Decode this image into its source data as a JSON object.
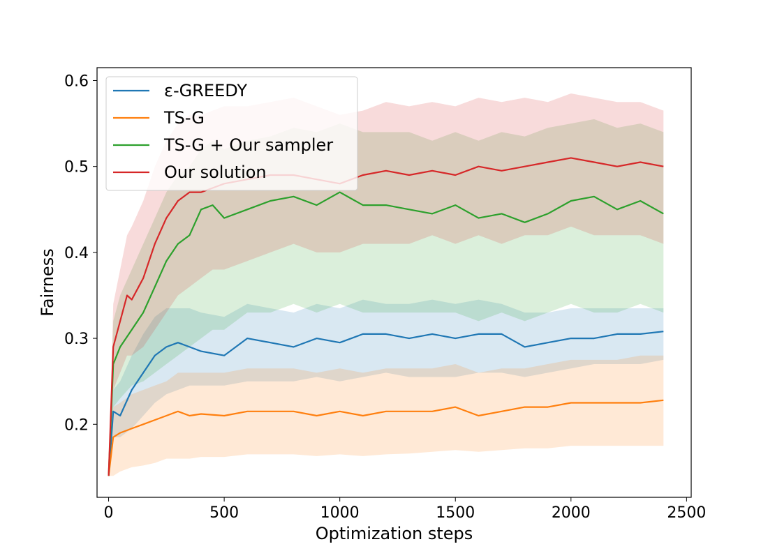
{
  "chart_data": {
    "type": "line",
    "title": "",
    "xlabel": "Optimization steps",
    "ylabel": "Fairness",
    "xlim": [
      -50,
      2520
    ],
    "ylim": [
      0.115,
      0.615
    ],
    "xticks": [
      0,
      500,
      1000,
      1500,
      2000,
      2500
    ],
    "yticks": [
      0.2,
      0.3,
      0.4,
      0.5,
      0.6
    ],
    "grid": false,
    "legend_position": "top-left",
    "series": [
      {
        "name": "ε-GREEDY",
        "color": "#1f77b4",
        "x": [
          0,
          20,
          50,
          100,
          150,
          200,
          250,
          300,
          350,
          400,
          500,
          600,
          700,
          800,
          900,
          1000,
          1100,
          1200,
          1300,
          1400,
          1500,
          1600,
          1700,
          1800,
          1900,
          2000,
          2100,
          2200,
          2300,
          2400
        ],
        "y": [
          0.14,
          0.215,
          0.21,
          0.24,
          0.26,
          0.28,
          0.29,
          0.295,
          0.29,
          0.285,
          0.28,
          0.3,
          0.295,
          0.29,
          0.3,
          0.295,
          0.305,
          0.305,
          0.3,
          0.305,
          0.3,
          0.305,
          0.305,
          0.29,
          0.295,
          0.3,
          0.3,
          0.305,
          0.305,
          0.308
        ],
        "lower": [
          0.14,
          0.185,
          0.185,
          0.195,
          0.21,
          0.225,
          0.235,
          0.24,
          0.245,
          0.245,
          0.245,
          0.25,
          0.25,
          0.25,
          0.255,
          0.25,
          0.255,
          0.26,
          0.255,
          0.255,
          0.255,
          0.26,
          0.26,
          0.255,
          0.26,
          0.265,
          0.27,
          0.27,
          0.27,
          0.275
        ],
        "upper": [
          0.14,
          0.24,
          0.25,
          0.28,
          0.305,
          0.325,
          0.335,
          0.335,
          0.335,
          0.33,
          0.325,
          0.34,
          0.335,
          0.33,
          0.34,
          0.335,
          0.345,
          0.34,
          0.34,
          0.345,
          0.34,
          0.345,
          0.34,
          0.33,
          0.33,
          0.335,
          0.335,
          0.335,
          0.335,
          0.335
        ]
      },
      {
        "name": "TS-G",
        "color": "#ff7f0e",
        "x": [
          0,
          20,
          50,
          100,
          150,
          200,
          250,
          300,
          350,
          400,
          500,
          600,
          700,
          800,
          900,
          1000,
          1100,
          1200,
          1300,
          1400,
          1500,
          1600,
          1700,
          1800,
          1900,
          2000,
          2100,
          2200,
          2300,
          2400
        ],
        "y": [
          0.14,
          0.185,
          0.19,
          0.195,
          0.2,
          0.205,
          0.21,
          0.215,
          0.21,
          0.212,
          0.21,
          0.215,
          0.215,
          0.215,
          0.21,
          0.215,
          0.21,
          0.215,
          0.215,
          0.215,
          0.22,
          0.21,
          0.215,
          0.22,
          0.22,
          0.225,
          0.225,
          0.225,
          0.225,
          0.228
        ],
        "lower": [
          0.14,
          0.14,
          0.145,
          0.15,
          0.152,
          0.155,
          0.16,
          0.16,
          0.16,
          0.162,
          0.162,
          0.165,
          0.165,
          0.165,
          0.163,
          0.165,
          0.163,
          0.165,
          0.166,
          0.168,
          0.17,
          0.168,
          0.17,
          0.172,
          0.172,
          0.175,
          0.175,
          0.175,
          0.175,
          0.175
        ],
        "upper": [
          0.14,
          0.22,
          0.225,
          0.235,
          0.24,
          0.245,
          0.25,
          0.26,
          0.26,
          0.26,
          0.26,
          0.265,
          0.265,
          0.265,
          0.26,
          0.265,
          0.26,
          0.265,
          0.265,
          0.265,
          0.27,
          0.26,
          0.265,
          0.265,
          0.27,
          0.275,
          0.275,
          0.275,
          0.28,
          0.28
        ]
      },
      {
        "name": "TS-G + Our sampler",
        "color": "#2ca02c",
        "x": [
          0,
          20,
          50,
          100,
          150,
          200,
          250,
          300,
          350,
          400,
          450,
          500,
          600,
          700,
          800,
          900,
          1000,
          1100,
          1200,
          1300,
          1400,
          1500,
          1600,
          1700,
          1800,
          1900,
          2000,
          2100,
          2200,
          2300,
          2400
        ],
        "y": [
          0.14,
          0.27,
          0.29,
          0.31,
          0.33,
          0.36,
          0.39,
          0.41,
          0.42,
          0.45,
          0.455,
          0.44,
          0.45,
          0.46,
          0.465,
          0.455,
          0.47,
          0.455,
          0.455,
          0.45,
          0.445,
          0.455,
          0.44,
          0.445,
          0.435,
          0.445,
          0.46,
          0.465,
          0.45,
          0.46,
          0.445
        ],
        "lower": [
          0.14,
          0.22,
          0.23,
          0.245,
          0.25,
          0.26,
          0.27,
          0.28,
          0.29,
          0.3,
          0.31,
          0.31,
          0.33,
          0.33,
          0.34,
          0.33,
          0.34,
          0.33,
          0.33,
          0.33,
          0.33,
          0.33,
          0.32,
          0.33,
          0.32,
          0.33,
          0.34,
          0.33,
          0.33,
          0.34,
          0.33
        ],
        "upper": [
          0.14,
          0.32,
          0.35,
          0.38,
          0.41,
          0.44,
          0.47,
          0.49,
          0.5,
          0.52,
          0.53,
          0.52,
          0.53,
          0.535,
          0.545,
          0.54,
          0.55,
          0.54,
          0.54,
          0.54,
          0.53,
          0.54,
          0.53,
          0.54,
          0.535,
          0.545,
          0.55,
          0.555,
          0.545,
          0.55,
          0.54
        ]
      },
      {
        "name": "Our solution",
        "color": "#d62728",
        "x": [
          0,
          20,
          50,
          80,
          100,
          150,
          200,
          250,
          300,
          350,
          400,
          450,
          500,
          600,
          700,
          800,
          900,
          1000,
          1100,
          1200,
          1300,
          1400,
          1500,
          1600,
          1700,
          1800,
          1900,
          2000,
          2100,
          2200,
          2300,
          2400
        ],
        "y": [
          0.14,
          0.29,
          0.32,
          0.35,
          0.345,
          0.37,
          0.41,
          0.44,
          0.46,
          0.47,
          0.47,
          0.475,
          0.48,
          0.485,
          0.49,
          0.49,
          0.485,
          0.48,
          0.49,
          0.495,
          0.49,
          0.495,
          0.49,
          0.5,
          0.495,
          0.5,
          0.505,
          0.51,
          0.505,
          0.5,
          0.505,
          0.5
        ],
        "lower": [
          0.14,
          0.24,
          0.26,
          0.28,
          0.28,
          0.29,
          0.31,
          0.33,
          0.35,
          0.36,
          0.37,
          0.38,
          0.38,
          0.39,
          0.4,
          0.41,
          0.4,
          0.4,
          0.41,
          0.41,
          0.41,
          0.42,
          0.41,
          0.42,
          0.41,
          0.42,
          0.42,
          0.43,
          0.42,
          0.42,
          0.42,
          0.41
        ],
        "upper": [
          0.14,
          0.34,
          0.38,
          0.42,
          0.43,
          0.46,
          0.5,
          0.53,
          0.55,
          0.56,
          0.56,
          0.565,
          0.57,
          0.57,
          0.575,
          0.58,
          0.57,
          0.56,
          0.565,
          0.575,
          0.57,
          0.575,
          0.57,
          0.58,
          0.575,
          0.58,
          0.575,
          0.585,
          0.58,
          0.575,
          0.575,
          0.565
        ]
      }
    ]
  }
}
